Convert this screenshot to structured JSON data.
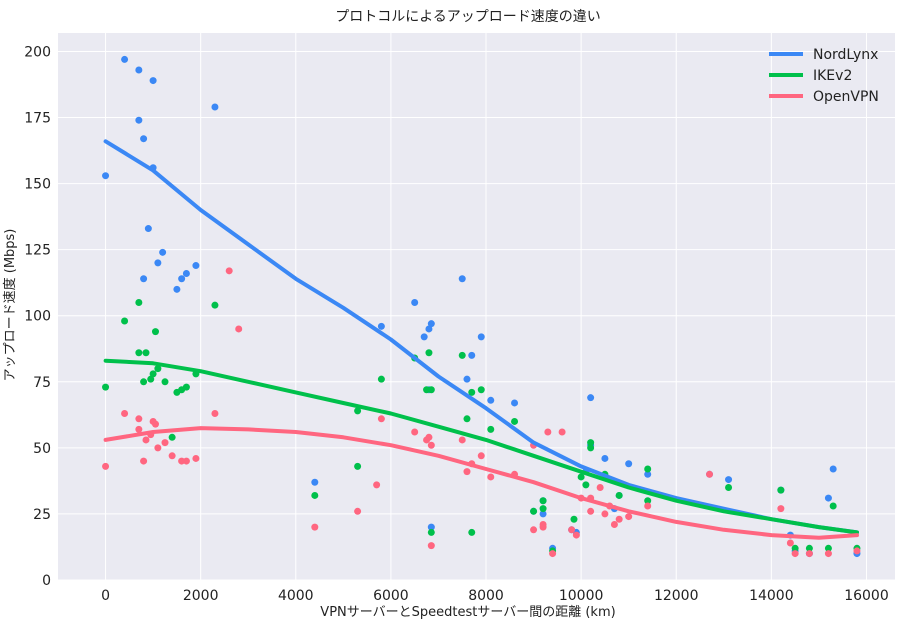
{
  "chart_data": {
    "type": "scatter",
    "title": "プロトコルによるアップロード速度の違い",
    "xlabel": "VPNサーバーとSpeedtestサーバー間の距離 (km)",
    "ylabel": "アップロード速度 (Mbps)",
    "xlim": [
      -1000,
      16600
    ],
    "ylim": [
      0,
      207
    ],
    "xticks": [
      0,
      2000,
      4000,
      6000,
      8000,
      10000,
      12000,
      14000,
      16000
    ],
    "yticks": [
      0,
      25,
      50,
      75,
      100,
      125,
      150,
      175,
      200
    ],
    "grid": true,
    "legend_position": "top-right",
    "background": "#eaeaf2",
    "series": [
      {
        "name": "NordLynx",
        "color": "#3b88f5",
        "trend": [
          [
            0,
            166
          ],
          [
            1000,
            155
          ],
          [
            2000,
            140
          ],
          [
            3000,
            127
          ],
          [
            4000,
            114
          ],
          [
            5000,
            103
          ],
          [
            6000,
            91
          ],
          [
            7000,
            77
          ],
          [
            8000,
            65
          ],
          [
            9000,
            52
          ],
          [
            10000,
            43
          ],
          [
            11000,
            36
          ],
          [
            12000,
            31
          ],
          [
            13000,
            27
          ],
          [
            14000,
            23
          ],
          [
            15000,
            20
          ],
          [
            15800,
            18
          ]
        ],
        "points": [
          [
            0,
            153
          ],
          [
            400,
            197
          ],
          [
            700,
            193
          ],
          [
            700,
            174
          ],
          [
            800,
            167
          ],
          [
            1000,
            189
          ],
          [
            1000,
            156
          ],
          [
            900,
            133
          ],
          [
            1100,
            120
          ],
          [
            1200,
            124
          ],
          [
            800,
            114
          ],
          [
            1500,
            110
          ],
          [
            1600,
            114
          ],
          [
            1700,
            116
          ],
          [
            1900,
            119
          ],
          [
            2300,
            179
          ],
          [
            4400,
            37
          ],
          [
            5800,
            96
          ],
          [
            6500,
            105
          ],
          [
            6700,
            92
          ],
          [
            6800,
            95
          ],
          [
            6850,
            97
          ],
          [
            6800,
            72
          ],
          [
            6850,
            20
          ],
          [
            7500,
            114
          ],
          [
            7600,
            76
          ],
          [
            7700,
            85
          ],
          [
            7900,
            92
          ],
          [
            8100,
            68
          ],
          [
            8600,
            67
          ],
          [
            9000,
            26
          ],
          [
            9200,
            30
          ],
          [
            9200,
            25
          ],
          [
            9400,
            12
          ],
          [
            9800,
            19
          ],
          [
            9900,
            18
          ],
          [
            10100,
            41
          ],
          [
            10200,
            69
          ],
          [
            10200,
            51
          ],
          [
            10500,
            46
          ],
          [
            10700,
            27
          ],
          [
            10800,
            32
          ],
          [
            11000,
            44
          ],
          [
            11400,
            40
          ],
          [
            12700,
            40
          ],
          [
            13100,
            38
          ],
          [
            14200,
            34
          ],
          [
            14400,
            17
          ],
          [
            14500,
            11
          ],
          [
            14800,
            10
          ],
          [
            15200,
            31
          ],
          [
            15300,
            42
          ],
          [
            15800,
            10
          ]
        ]
      },
      {
        "name": "IKEv2",
        "color": "#00c04b",
        "trend": [
          [
            0,
            83
          ],
          [
            1000,
            82
          ],
          [
            2000,
            79
          ],
          [
            3000,
            75
          ],
          [
            4000,
            71
          ],
          [
            5000,
            67
          ],
          [
            6000,
            63
          ],
          [
            7000,
            58
          ],
          [
            8000,
            53
          ],
          [
            9000,
            47
          ],
          [
            10000,
            41
          ],
          [
            11000,
            35
          ],
          [
            12000,
            30
          ],
          [
            13000,
            26
          ],
          [
            14000,
            23
          ],
          [
            15000,
            20
          ],
          [
            15800,
            18
          ]
        ],
        "points": [
          [
            0,
            73
          ],
          [
            400,
            98
          ],
          [
            700,
            105
          ],
          [
            700,
            86
          ],
          [
            850,
            86
          ],
          [
            800,
            75
          ],
          [
            950,
            76
          ],
          [
            1000,
            78
          ],
          [
            1050,
            94
          ],
          [
            1100,
            80
          ],
          [
            1250,
            75
          ],
          [
            1400,
            54
          ],
          [
            1500,
            71
          ],
          [
            1600,
            72
          ],
          [
            1700,
            73
          ],
          [
            1900,
            78
          ],
          [
            2300,
            104
          ],
          [
            4400,
            32
          ],
          [
            5300,
            43
          ],
          [
            5300,
            64
          ],
          [
            5800,
            76
          ],
          [
            6500,
            84
          ],
          [
            6800,
            86
          ],
          [
            6750,
            72
          ],
          [
            6850,
            72
          ],
          [
            6850,
            18
          ],
          [
            7500,
            85
          ],
          [
            7600,
            61
          ],
          [
            7700,
            71
          ],
          [
            7700,
            18
          ],
          [
            7900,
            72
          ],
          [
            8100,
            57
          ],
          [
            8600,
            60
          ],
          [
            9000,
            26
          ],
          [
            9200,
            30
          ],
          [
            9200,
            27
          ],
          [
            9400,
            11
          ],
          [
            9850,
            23
          ],
          [
            10000,
            39
          ],
          [
            10100,
            36
          ],
          [
            10200,
            50
          ],
          [
            10200,
            52
          ],
          [
            10500,
            40
          ],
          [
            10800,
            32
          ],
          [
            11400,
            42
          ],
          [
            11400,
            30
          ],
          [
            13100,
            35
          ],
          [
            14200,
            34
          ],
          [
            14500,
            12
          ],
          [
            14800,
            12
          ],
          [
            15200,
            12
          ],
          [
            15300,
            28
          ],
          [
            15800,
            12
          ]
        ]
      },
      {
        "name": "OpenVPN",
        "color": "#ff6680",
        "trend": [
          [
            0,
            53
          ],
          [
            1000,
            56
          ],
          [
            2000,
            57.5
          ],
          [
            3000,
            57
          ],
          [
            4000,
            56
          ],
          [
            5000,
            54
          ],
          [
            6000,
            51
          ],
          [
            7000,
            47
          ],
          [
            8000,
            42
          ],
          [
            9000,
            37
          ],
          [
            10000,
            31
          ],
          [
            11000,
            26
          ],
          [
            12000,
            22
          ],
          [
            13000,
            19
          ],
          [
            14000,
            17
          ],
          [
            15000,
            16
          ],
          [
            15800,
            17
          ]
        ],
        "points": [
          [
            0,
            43
          ],
          [
            400,
            63
          ],
          [
            700,
            61
          ],
          [
            700,
            57
          ],
          [
            850,
            53
          ],
          [
            800,
            45
          ],
          [
            950,
            55
          ],
          [
            1000,
            60
          ],
          [
            1050,
            59
          ],
          [
            1100,
            50
          ],
          [
            1250,
            52
          ],
          [
            1400,
            47
          ],
          [
            1600,
            45
          ],
          [
            1700,
            45
          ],
          [
            1900,
            46
          ],
          [
            2300,
            63
          ],
          [
            2600,
            117
          ],
          [
            2800,
            95
          ],
          [
            4400,
            20
          ],
          [
            5300,
            26
          ],
          [
            5700,
            36
          ],
          [
            5800,
            61
          ],
          [
            6500,
            56
          ],
          [
            6750,
            53
          ],
          [
            6800,
            54
          ],
          [
            6850,
            51
          ],
          [
            6850,
            13
          ],
          [
            7500,
            53
          ],
          [
            7600,
            41
          ],
          [
            7700,
            44
          ],
          [
            7900,
            47
          ],
          [
            8100,
            39
          ],
          [
            8600,
            40
          ],
          [
            9000,
            51
          ],
          [
            9000,
            19
          ],
          [
            9200,
            21
          ],
          [
            9200,
            20
          ],
          [
            9300,
            56
          ],
          [
            9400,
            10
          ],
          [
            9600,
            56
          ],
          [
            9800,
            19
          ],
          [
            9900,
            17
          ],
          [
            10000,
            31
          ],
          [
            10200,
            31
          ],
          [
            10200,
            26
          ],
          [
            10400,
            35
          ],
          [
            10500,
            25
          ],
          [
            10600,
            28
          ],
          [
            10700,
            21
          ],
          [
            10800,
            23
          ],
          [
            11000,
            24
          ],
          [
            11400,
            28
          ],
          [
            12700,
            40
          ],
          [
            14200,
            27
          ],
          [
            14400,
            14
          ],
          [
            14500,
            10
          ],
          [
            14800,
            10
          ],
          [
            15200,
            10
          ],
          [
            15800,
            11
          ]
        ]
      }
    ]
  }
}
